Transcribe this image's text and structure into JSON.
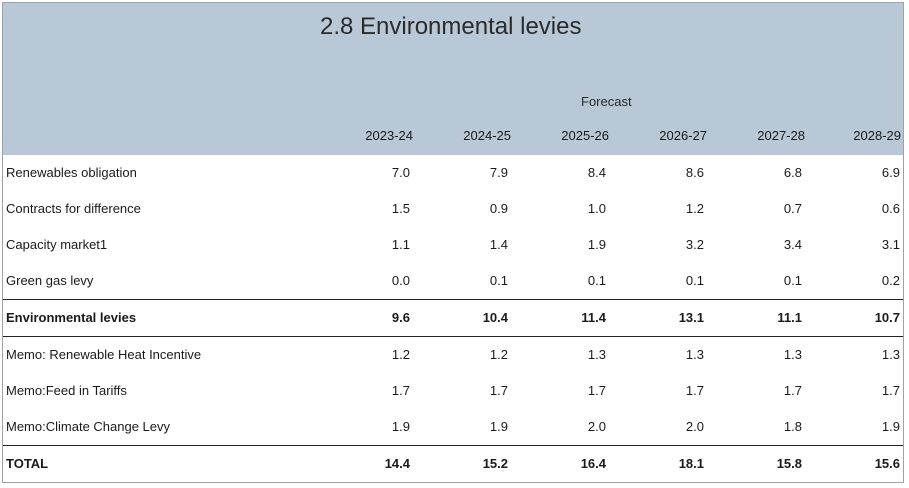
{
  "title": "2.8 Environmental levies",
  "forecast_label": "Forecast",
  "years": [
    "2023-24",
    "2024-25",
    "2025-26",
    "2026-27",
    "2027-28",
    "2028-29"
  ],
  "rows": [
    {
      "label": "Renewables obligation",
      "values": [
        "7.0",
        "7.9",
        "8.4",
        "8.6",
        "6.8",
        "6.9"
      ]
    },
    {
      "label": "Contracts for difference",
      "values": [
        "1.5",
        "0.9",
        "1.0",
        "1.2",
        "0.7",
        "0.6"
      ]
    },
    {
      "label": "Capacity market1",
      "values": [
        "1.1",
        "1.4",
        "1.9",
        "3.2",
        "3.4",
        "3.1"
      ]
    },
    {
      "label": "Green gas levy",
      "values": [
        "0.0",
        "0.1",
        "0.1",
        "0.1",
        "0.1",
        "0.2"
      ]
    },
    {
      "label": "Environmental levies",
      "values": [
        "9.6",
        "10.4",
        "11.4",
        "13.1",
        "11.1",
        "10.7"
      ]
    },
    {
      "label": "Memo: Renewable Heat Incentive",
      "values": [
        "1.2",
        "1.2",
        "1.3",
        "1.3",
        "1.3",
        "1.3"
      ]
    },
    {
      "label": "Memo:Feed in Tariffs",
      "values": [
        "1.7",
        "1.7",
        "1.7",
        "1.7",
        "1.7",
        "1.7"
      ]
    },
    {
      "label": "Memo:Climate Change Levy",
      "values": [
        "1.9",
        "1.9",
        "2.0",
        "2.0",
        "1.8",
        "1.9"
      ]
    },
    {
      "label": "TOTAL",
      "values": [
        "14.4",
        "15.2",
        "16.4",
        "18.1",
        "15.8",
        "15.6"
      ]
    }
  ],
  "colors": {
    "header_background": "#b8c8d6",
    "rule": "#222222"
  }
}
